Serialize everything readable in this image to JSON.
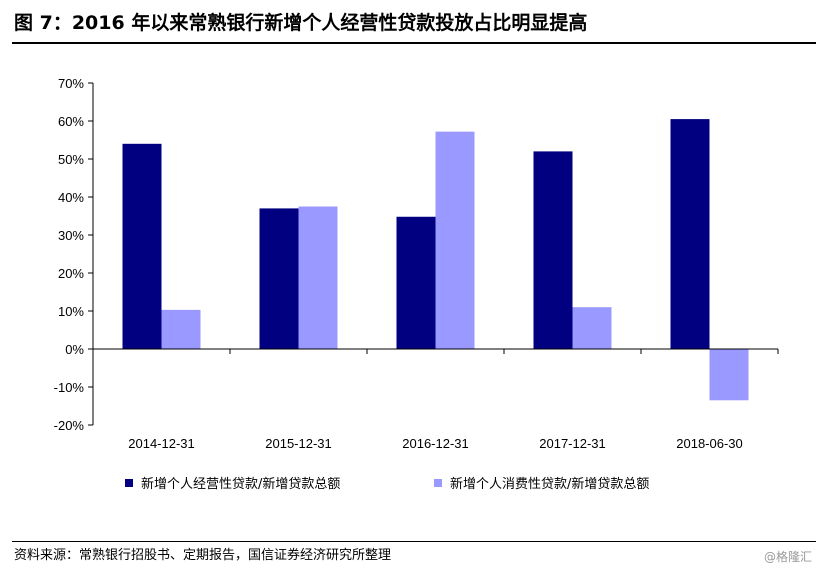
{
  "header": {
    "title": "图 7：2016 年以来常熟银行新增个人经营性贷款投放占比明显提高"
  },
  "chart_data": {
    "type": "bar",
    "categories": [
      "2014-12-31",
      "2015-12-31",
      "2016-12-31",
      "2017-12-31",
      "2018-06-30"
    ],
    "series": [
      {
        "name": "新增个人经营性贷款/新增贷款总额",
        "values": [
          54,
          37,
          34.8,
          52,
          60.5
        ],
        "color": "#000080"
      },
      {
        "name": "新增个人消费性贷款/新增贷款总额",
        "values": [
          10.3,
          37.5,
          57.2,
          11,
          -13.5
        ],
        "color": "#9999ff"
      }
    ],
    "yticks": [
      "70%",
      "60%",
      "50%",
      "40%",
      "30%",
      "20%",
      "10%",
      "0%",
      "-10%",
      "-20%"
    ],
    "ylim": [
      -20,
      70
    ],
    "grid": false,
    "legend_position": "bottom"
  },
  "footer": {
    "source": "资料来源：常熟银行招股书、定期报告，国信证券经济研究所整理",
    "watermark": "@格隆汇"
  }
}
